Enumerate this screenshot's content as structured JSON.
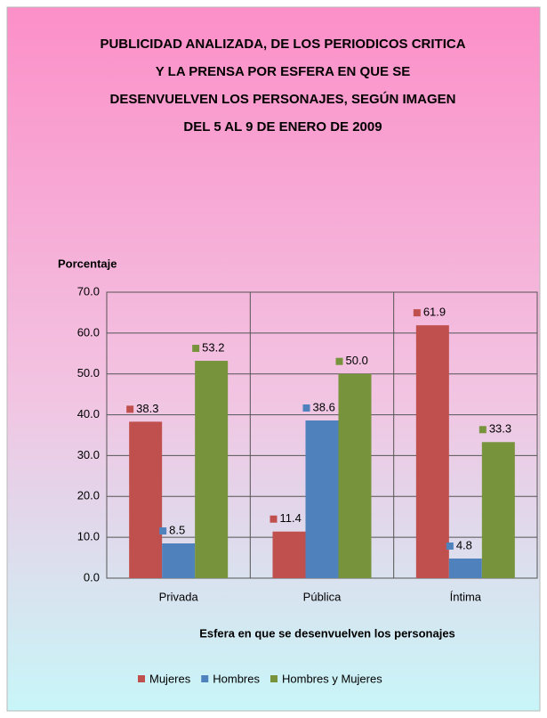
{
  "chart_data": {
    "type": "bar",
    "title": [
      "PUBLICIDAD ANALIZADA, DE LOS PERIODICOS CRITICA",
      "Y LA PRENSA POR ESFERA EN QUE SE",
      "DESENVUELVEN LOS PERSONAJES, SEGÚN IMAGEN",
      "DEL 5 AL 9 DE ENERO DE 2009"
    ],
    "y_label": "Porcentaje",
    "x_label": "Esfera en que se desenvuelven los personajes",
    "categories": [
      "Privada",
      "Pública",
      "Íntima"
    ],
    "series": [
      {
        "name": "Mujeres",
        "color": "#c0504d",
        "values": [
          38.3,
          11.4,
          61.9
        ],
        "value_labels": [
          "38.3",
          "11.4",
          "61.9"
        ]
      },
      {
        "name": "Hombres",
        "color": "#4f81bd",
        "values": [
          8.5,
          38.6,
          4.8
        ],
        "value_labels": [
          "8.5",
          "38.6",
          "4.8"
        ]
      },
      {
        "name": "Hombres y Mujeres",
        "color": "#77933c",
        "values": [
          53.2,
          50,
          33.3
        ],
        "value_labels": [
          "53.2",
          "50.0",
          "33.3"
        ]
      }
    ],
    "ylim": [
      0,
      70
    ],
    "yticks": [
      {
        "value": 0,
        "label": "0.0"
      },
      {
        "value": 10,
        "label": "10.0"
      },
      {
        "value": 20,
        "label": "20.0"
      },
      {
        "value": 30,
        "label": "30.0"
      },
      {
        "value": 40,
        "label": "40.0"
      },
      {
        "value": 50,
        "label": "50.0"
      },
      {
        "value": 60,
        "label": "60.0"
      },
      {
        "value": 70,
        "label": "70.0"
      }
    ],
    "grid": true,
    "legend": "bottom"
  }
}
